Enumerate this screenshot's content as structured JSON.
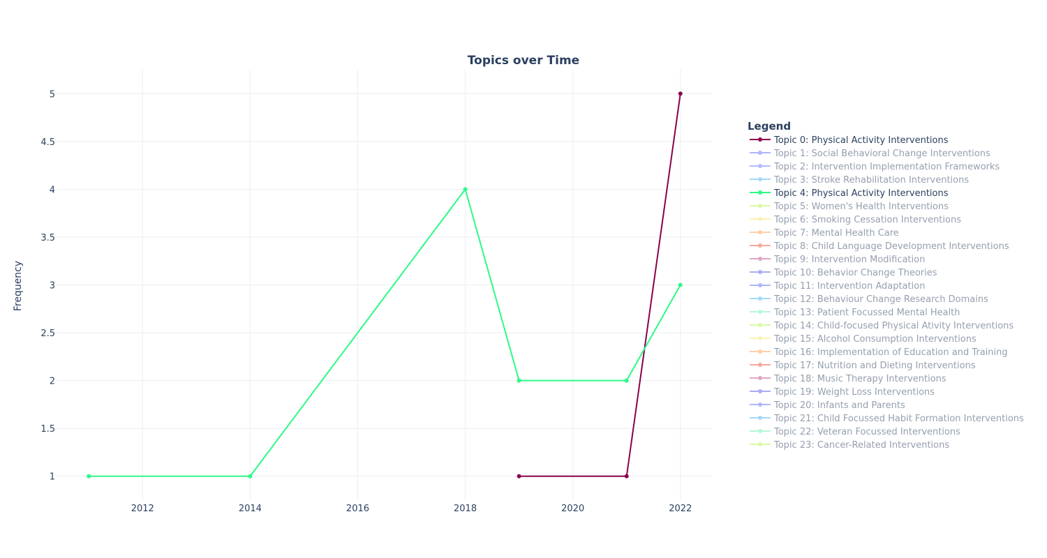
{
  "chart_data": {
    "type": "line",
    "title": "Topics over Time",
    "xlabel": "",
    "ylabel": "Frequency",
    "xlim": [
      2010.4,
      2022.6
    ],
    "ylim": [
      0.75,
      5.25
    ],
    "xticks": [
      2012,
      2014,
      2016,
      2018,
      2020,
      2022
    ],
    "xtick_labels": [
      "2012",
      "2014",
      "2016",
      "2018",
      "2020",
      "2022"
    ],
    "yticks": [
      1,
      1.5,
      2,
      2.5,
      3,
      3.5,
      4,
      4.5,
      5
    ],
    "ytick_labels": [
      "1",
      "1.5",
      "2",
      "2.5",
      "3",
      "3.5",
      "4",
      "4.5",
      "5"
    ],
    "grid": true,
    "legend_placement": "right",
    "legend_title": "Legend",
    "series": [
      {
        "name": "Topic 0: Physical Activity Interventions",
        "color": "#8b004b",
        "visible": true,
        "x": [
          2019,
          2021,
          2022
        ],
        "y": [
          1,
          1,
          5
        ]
      },
      {
        "name": "Topic 1: Social Behavioral Change Interventions",
        "color": "#636efa",
        "visible": false
      },
      {
        "name": "Topic 2: Intervention Implementation Frameworks",
        "color": "#6a77ff",
        "visible": false
      },
      {
        "name": "Topic 3: Stroke Rehabilitation Interventions",
        "color": "#4bb4f0",
        "visible": false
      },
      {
        "name": "Topic 4: Physical Activity Interventions",
        "color": "#2bfa86",
        "visible": true,
        "x": [
          2011,
          2014,
          2018,
          2019,
          2021,
          2022
        ],
        "y": [
          1,
          1,
          4,
          2,
          2,
          3
        ]
      },
      {
        "name": "Topic 5: Women's Health Interventions",
        "color": "#b6f24a",
        "visible": false
      },
      {
        "name": "Topic 6: Smoking Cessation Interventions",
        "color": "#f7e76a",
        "visible": false
      },
      {
        "name": "Topic 7: Mental Health Care",
        "color": "#ffa15a",
        "visible": false
      },
      {
        "name": "Topic 8: Child Language Development Interventions",
        "color": "#ef553b",
        "visible": false
      },
      {
        "name": "Topic 9: Intervention Modification",
        "color": "#c2508f",
        "visible": false
      },
      {
        "name": "Topic 10: Behavior Change Theories",
        "color": "#5a5ae6",
        "visible": false
      },
      {
        "name": "Topic 11: Intervention Adaptation",
        "color": "#5f6ffa",
        "visible": false
      },
      {
        "name": "Topic 12: Behaviour Change Research Domains",
        "color": "#4bb4f0",
        "visible": false
      },
      {
        "name": "Topic 13: Patient Focussed Mental Health",
        "color": "#6ff0b4",
        "visible": false
      },
      {
        "name": "Topic 14: Child-focused Physical Ativity Interventions",
        "color": "#b6f24a",
        "visible": false
      },
      {
        "name": "Topic 15: Alcohol Consumption Interventions",
        "color": "#f7e76a",
        "visible": false
      },
      {
        "name": "Topic 16: Implementation of Education and Training",
        "color": "#ffa15a",
        "visible": false
      },
      {
        "name": "Topic 17: Nutrition and Dieting Interventions",
        "color": "#ef553b",
        "visible": false
      },
      {
        "name": "Topic 18: Music Therapy Interventions",
        "color": "#c2508f",
        "visible": false
      },
      {
        "name": "Topic 19: Weight Loss Interventions",
        "color": "#5a5ae6",
        "visible": false
      },
      {
        "name": "Topic 20: Infants and Parents",
        "color": "#5f6ffa",
        "visible": false
      },
      {
        "name": "Topic 21: Child Focussed Habit Formation Interventions",
        "color": "#4bb4f0",
        "visible": false
      },
      {
        "name": "Topic 22: Veteran Focussed Interventions",
        "color": "#6ff0b4",
        "visible": false
      },
      {
        "name": "Topic 23: Cancer-Related Interventions",
        "color": "#b6f24a",
        "visible": false
      }
    ]
  }
}
